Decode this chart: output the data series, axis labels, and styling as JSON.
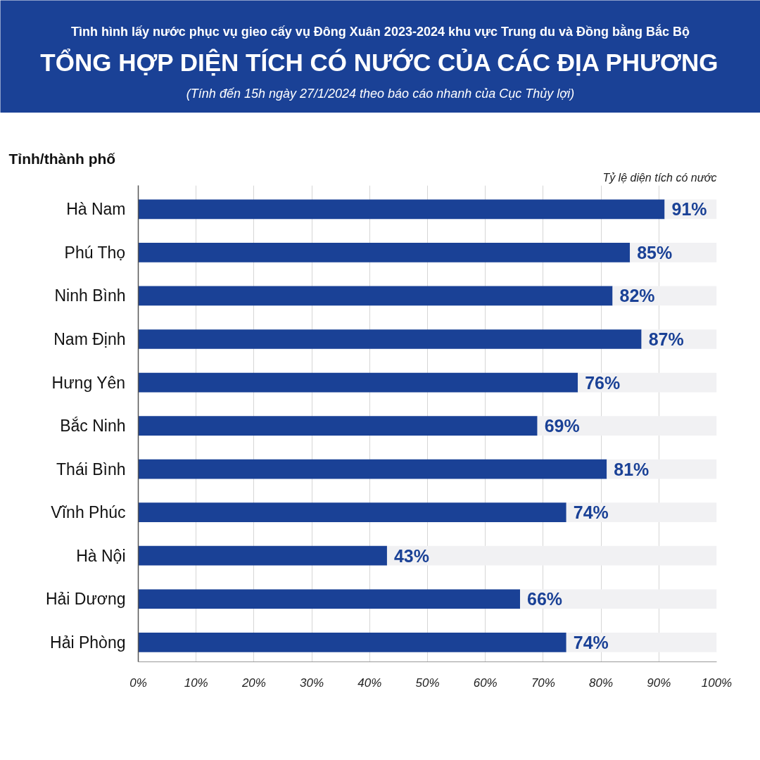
{
  "chart_data": {
    "type": "bar",
    "orientation": "horizontal",
    "stacked": true,
    "title": "Tình hình lấy nước phục vụ gieo cấy vụ Đông Xuân 2023-2024 khu vực Trung du và Đồng bằng Bắc Bộ",
    "subtitle": "TỔNG HỢP DIỆN TÍCH CÓ NƯỚC CỦA CÁC ĐỊA PHƯƠNG",
    "annotations": [
      "(Tính đến 15h ngày 27/1/2024 theo báo cáo nhanh của Cục Thủy lợi)"
    ],
    "xlabel": "Tỷ lệ diện tích có nước",
    "ylabel": "Tỉnh/thành phố",
    "categories": [
      "Hà Nam",
      "Phú Thọ",
      "Ninh Bình",
      "Nam Định",
      "Hưng Yên",
      "Bắc Ninh",
      "Thái Bình",
      "Vĩnh Phúc",
      "Hà Nội",
      "Hải Dương",
      "Hải Phòng"
    ],
    "series": [
      {
        "color": "#1a4196",
        "values": [
          91,
          85,
          82,
          87,
          76,
          69,
          81,
          74,
          43,
          66,
          74
        ],
        "value_labels": [
          "91%",
          "85%",
          "82%",
          "87%",
          "76%",
          "69%",
          "81%",
          "74%",
          "43%",
          "66%",
          "74%"
        ]
      },
      {
        "color": "#f1f1f3",
        "values": [
          9,
          15,
          18,
          13,
          24,
          31,
          19,
          26,
          57,
          34,
          26
        ]
      }
    ],
    "xlim": [
      0,
      100
    ],
    "xticks": [
      {
        "value": 0,
        "label": "0%"
      },
      {
        "value": 10,
        "label": "10%"
      },
      {
        "value": 20,
        "label": "20%"
      },
      {
        "value": 30,
        "label": "30%"
      },
      {
        "value": 40,
        "label": "40%"
      },
      {
        "value": 50,
        "label": "50%"
      },
      {
        "value": 60,
        "label": "60%"
      },
      {
        "value": 70,
        "label": "70%"
      },
      {
        "value": 80,
        "label": "80%"
      },
      {
        "value": 90,
        "label": "90%"
      },
      {
        "value": 100,
        "label": "100%"
      }
    ],
    "grid": "x"
  }
}
